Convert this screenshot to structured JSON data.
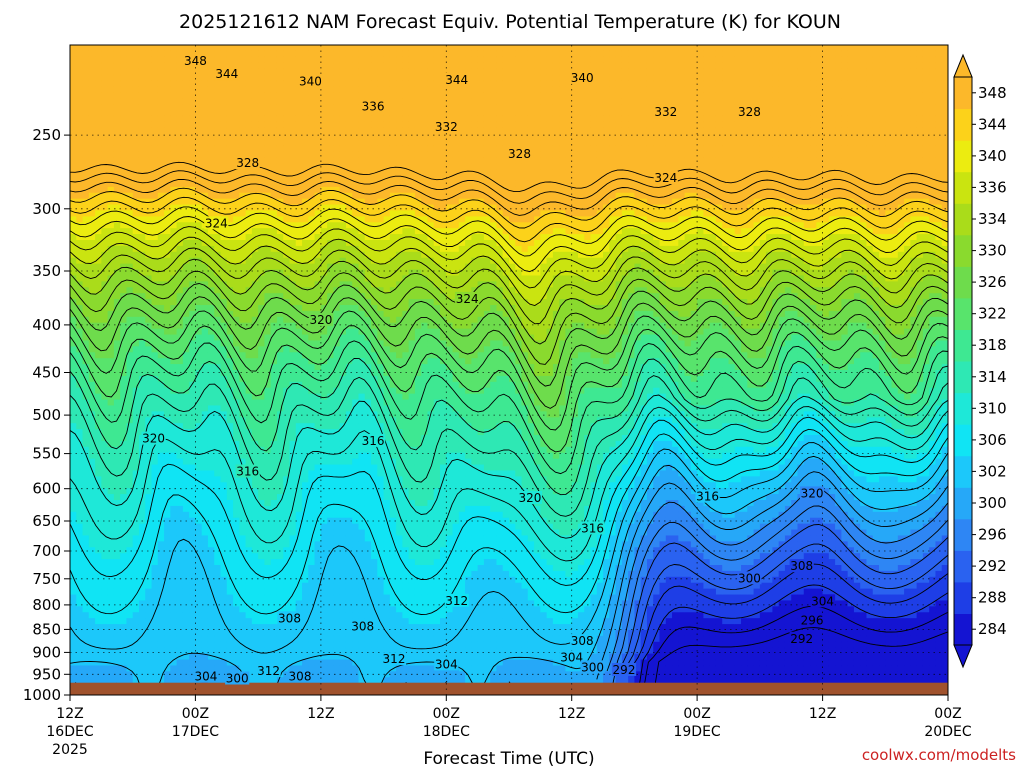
{
  "chart_data": {
    "type": "heatmap",
    "title": "2025121612 NAM Forecast Equiv. Potential Temperature (K) for KOUN",
    "xlabel": "Forecast Time (UTC)",
    "ylabel": "",
    "y_scale": "log",
    "y_range": [
      1000,
      200
    ],
    "y_ticks": [
      250,
      300,
      350,
      400,
      450,
      500,
      550,
      600,
      650,
      700,
      750,
      800,
      850,
      900,
      950,
      1000
    ],
    "x_range_hours": [
      0,
      84
    ],
    "x_ticks": [
      {
        "hour": 0,
        "label": "12Z",
        "date": "16DEC",
        "year": "2025"
      },
      {
        "hour": 12,
        "label": "00Z",
        "date": "17DEC",
        "year": ""
      },
      {
        "hour": 24,
        "label": "12Z",
        "date": "",
        "year": ""
      },
      {
        "hour": 36,
        "label": "00Z",
        "date": "18DEC",
        "year": ""
      },
      {
        "hour": 48,
        "label": "12Z",
        "date": "",
        "year": ""
      },
      {
        "hour": 60,
        "label": "00Z",
        "date": "19DEC",
        "year": ""
      },
      {
        "hour": 72,
        "label": "12Z",
        "date": "",
        "year": ""
      },
      {
        "hour": 84,
        "label": "00Z",
        "date": "20DEC",
        "year": ""
      }
    ],
    "colorbar": {
      "levels": [
        284,
        288,
        292,
        296,
        300,
        302,
        306,
        310,
        314,
        318,
        322,
        326,
        330,
        334,
        336,
        340,
        344,
        348
      ],
      "colors": [
        "#1414d2",
        "#1e3ee6",
        "#2a62f0",
        "#2e86f4",
        "#26a8f8",
        "#1cc8fa",
        "#10e4f4",
        "#1ee8d8",
        "#2ee8b4",
        "#3ee892",
        "#58e46c",
        "#6edc4c",
        "#8ada2e",
        "#aadc1a",
        "#cae410",
        "#ecec10",
        "#fcd21a",
        "#fcb82a"
      ],
      "label_levels": [
        284,
        288,
        292,
        296,
        300,
        302,
        306,
        310,
        314,
        318,
        322,
        326,
        330,
        334,
        336,
        340,
        344,
        348
      ]
    },
    "terrain_level_hpa": 970,
    "contour_labels": [
      {
        "value": 348,
        "hour": 12,
        "p": 208
      },
      {
        "value": 344,
        "hour": 15,
        "p": 215
      },
      {
        "value": 340,
        "hour": 23,
        "p": 219
      },
      {
        "value": 344,
        "hour": 37,
        "p": 218
      },
      {
        "value": 340,
        "hour": 49,
        "p": 217
      },
      {
        "value": 336,
        "hour": 29,
        "p": 233
      },
      {
        "value": 332,
        "hour": 36,
        "p": 245
      },
      {
        "value": 328,
        "hour": 43,
        "p": 262
      },
      {
        "value": 332,
        "hour": 57,
        "p": 236
      },
      {
        "value": 328,
        "hour": 65,
        "p": 236
      },
      {
        "value": 328,
        "hour": 17,
        "p": 268
      },
      {
        "value": 324,
        "hour": 57,
        "p": 278
      },
      {
        "value": 324,
        "hour": 14,
        "p": 311
      },
      {
        "value": 324,
        "hour": 38,
        "p": 375
      },
      {
        "value": 320,
        "hour": 24,
        "p": 395
      },
      {
        "value": 320,
        "hour": 8,
        "p": 530
      },
      {
        "value": 316,
        "hour": 29,
        "p": 533
      },
      {
        "value": 316,
        "hour": 17,
        "p": 575
      },
      {
        "value": 320,
        "hour": 44,
        "p": 614
      },
      {
        "value": 316,
        "hour": 50,
        "p": 662
      },
      {
        "value": 316,
        "hour": 61,
        "p": 612
      },
      {
        "value": 320,
        "hour": 71,
        "p": 607
      },
      {
        "value": 312,
        "hour": 37,
        "p": 792
      },
      {
        "value": 308,
        "hour": 21,
        "p": 827
      },
      {
        "value": 308,
        "hour": 28,
        "p": 844
      },
      {
        "value": 300,
        "hour": 65,
        "p": 749
      },
      {
        "value": 308,
        "hour": 70,
        "p": 727
      },
      {
        "value": 304,
        "hour": 72,
        "p": 793
      },
      {
        "value": 296,
        "hour": 71,
        "p": 832
      },
      {
        "value": 292,
        "hour": 70,
        "p": 870
      },
      {
        "value": 308,
        "hour": 49,
        "p": 875
      },
      {
        "value": 304,
        "hour": 48,
        "p": 911
      },
      {
        "value": 312,
        "hour": 31,
        "p": 915
      },
      {
        "value": 304,
        "hour": 36,
        "p": 927
      },
      {
        "value": 300,
        "hour": 50,
        "p": 934
      },
      {
        "value": 292,
        "hour": 53,
        "p": 940
      },
      {
        "value": 312,
        "hour": 19,
        "p": 942
      },
      {
        "value": 308,
        "hour": 22,
        "p": 955
      },
      {
        "value": 304,
        "hour": 13,
        "p": 955
      },
      {
        "value": 300,
        "hour": 16,
        "p": 960
      }
    ]
  },
  "credit": "coolwx.com/modelts",
  "colors": {
    "ground": "#a0522d",
    "contour": "#000000",
    "grid": "#000000",
    "credit_text": "#cc2222"
  }
}
